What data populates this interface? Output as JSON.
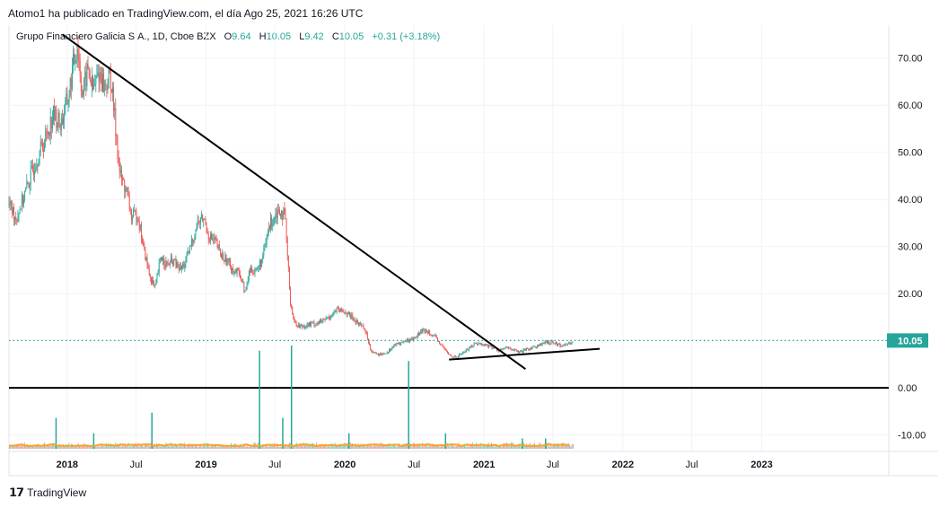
{
  "header": {
    "publish_text": "Atomo1 ha publicado en TradingView.com, el día Ago 25, 2021 16:26 UTC"
  },
  "legend": {
    "symbol": "Grupo Financiero Galicia S.A., 1D, Cboe BZX",
    "open_label": "O",
    "open": "9.64",
    "high_label": "H",
    "high": "10.05",
    "low_label": "L",
    "low": "9.42",
    "close_label": "C",
    "close": "10.05",
    "change": "+0.31 (+3.18%)"
  },
  "footer": {
    "logo_icon": "tradingview-logo-icon",
    "brand": "TradingView"
  },
  "colors": {
    "up": "#26a69a",
    "down": "#ef5350",
    "price_line": "#26a69a",
    "volume_ma": "#f5a623",
    "trendline": "#000000"
  },
  "chart_data": {
    "type": "candlestick",
    "price_axis": {
      "ticks": [
        -10,
        0,
        10,
        20,
        30,
        40,
        50,
        60,
        70
      ],
      "tick_labels": [
        "-10.00",
        "0.00",
        "10.00",
        "20.00",
        "30.00",
        "40.00",
        "50.00",
        "60.00",
        "70.00"
      ],
      "range": [
        -13.5,
        77
      ]
    },
    "time_axis": {
      "range": [
        "2017-08-01",
        "2023-12-01"
      ],
      "ticks": [
        {
          "date": "2018-01-01",
          "label": "2018",
          "bold": true
        },
        {
          "date": "2018-07-01",
          "label": "Jul",
          "bold": false
        },
        {
          "date": "2019-01-01",
          "label": "2019",
          "bold": true
        },
        {
          "date": "2019-07-01",
          "label": "Jul",
          "bold": false
        },
        {
          "date": "2020-01-01",
          "label": "2020",
          "bold": true
        },
        {
          "date": "2020-07-01",
          "label": "Jul",
          "bold": false
        },
        {
          "date": "2021-01-01",
          "label": "2021",
          "bold": true
        },
        {
          "date": "2021-07-01",
          "label": "Jul",
          "bold": false
        },
        {
          "date": "2022-01-01",
          "label": "2022",
          "bold": true
        },
        {
          "date": "2022-07-01",
          "label": "Jul",
          "bold": false
        },
        {
          "date": "2023-01-01",
          "label": "2023",
          "bold": true
        }
      ]
    },
    "last_price": {
      "value": 10.05,
      "label": "10.05"
    },
    "price_path": [
      [
        "2017-08-01",
        39
      ],
      [
        "2017-08-20",
        36
      ],
      [
        "2017-09-15",
        42
      ],
      [
        "2017-10-10",
        48
      ],
      [
        "2017-11-05",
        53
      ],
      [
        "2017-11-25",
        58
      ],
      [
        "2017-12-15",
        56
      ],
      [
        "2018-01-05",
        62
      ],
      [
        "2018-01-20",
        70
      ],
      [
        "2018-01-28",
        73
      ],
      [
        "2018-02-10",
        62
      ],
      [
        "2018-02-25",
        68
      ],
      [
        "2018-03-10",
        63
      ],
      [
        "2018-03-25",
        67
      ],
      [
        "2018-04-10",
        64
      ],
      [
        "2018-04-25",
        66
      ],
      [
        "2018-05-05",
        58
      ],
      [
        "2018-05-20",
        45
      ],
      [
        "2018-06-05",
        42
      ],
      [
        "2018-06-20",
        36
      ],
      [
        "2018-07-05",
        37
      ],
      [
        "2018-07-20",
        30
      ],
      [
        "2018-08-05",
        24
      ],
      [
        "2018-08-20",
        21
      ],
      [
        "2018-09-05",
        28
      ],
      [
        "2018-09-20",
        26
      ],
      [
        "2018-10-05",
        27
      ],
      [
        "2018-10-25",
        25
      ],
      [
        "2018-11-10",
        27
      ],
      [
        "2018-11-25",
        31
      ],
      [
        "2018-12-10",
        35
      ],
      [
        "2018-12-25",
        36
      ],
      [
        "2019-01-10",
        32
      ],
      [
        "2019-01-25",
        31
      ],
      [
        "2019-02-10",
        28
      ],
      [
        "2019-02-25",
        27
      ],
      [
        "2019-03-15",
        25
      ],
      [
        "2019-04-01",
        24
      ],
      [
        "2019-04-15",
        20
      ],
      [
        "2019-04-25",
        25
      ],
      [
        "2019-05-15",
        25
      ],
      [
        "2019-06-01",
        28
      ],
      [
        "2019-06-15",
        34
      ],
      [
        "2019-07-01",
        37
      ],
      [
        "2019-07-15",
        38
      ],
      [
        "2019-07-28",
        36
      ],
      [
        "2019-08-10",
        19
      ],
      [
        "2019-08-20",
        14
      ],
      [
        "2019-09-05",
        13
      ],
      [
        "2019-10-01",
        13.5
      ],
      [
        "2019-11-01",
        14
      ],
      [
        "2019-11-20",
        15
      ],
      [
        "2019-12-10",
        16.5
      ],
      [
        "2020-01-05",
        16
      ],
      [
        "2020-02-01",
        14
      ],
      [
        "2020-02-20",
        13
      ],
      [
        "2020-03-10",
        8
      ],
      [
        "2020-03-25",
        7
      ],
      [
        "2020-04-20",
        7.5
      ],
      [
        "2020-05-10",
        9
      ],
      [
        "2020-06-10",
        10
      ],
      [
        "2020-07-01",
        10.5
      ],
      [
        "2020-07-20",
        12
      ],
      [
        "2020-08-10",
        12
      ],
      [
        "2020-09-01",
        10
      ],
      [
        "2020-10-01",
        7
      ],
      [
        "2020-10-20",
        6.5
      ],
      [
        "2020-11-15",
        8
      ],
      [
        "2020-12-10",
        9.5
      ],
      [
        "2021-01-10",
        9
      ],
      [
        "2021-02-10",
        8
      ],
      [
        "2021-03-05",
        8.5
      ],
      [
        "2021-04-05",
        7.5
      ],
      [
        "2021-05-05",
        8.5
      ],
      [
        "2021-06-10",
        9.5
      ],
      [
        "2021-07-01",
        9.8
      ],
      [
        "2021-07-20",
        9
      ],
      [
        "2021-08-10",
        9.3
      ],
      [
        "2021-08-25",
        10.05
      ]
    ],
    "volume_axis_note": "volume histogram in lower pane",
    "volume_spikes": [
      [
        "2017-12-01",
        0.3
      ],
      [
        "2018-03-10",
        0.15
      ],
      [
        "2018-08-10",
        0.35
      ],
      [
        "2019-05-20",
        0.95
      ],
      [
        "2019-07-20",
        0.3
      ],
      [
        "2019-08-12",
        1.0
      ],
      [
        "2020-01-10",
        0.15
      ],
      [
        "2020-06-15",
        0.85
      ],
      [
        "2020-09-20",
        0.15
      ],
      [
        "2021-04-10",
        0.1
      ],
      [
        "2021-06-10",
        0.1
      ]
    ],
    "trendlines": [
      {
        "name": "downtrend",
        "from": [
          "2017-12-20",
          75
        ],
        "to": [
          "2021-04-20",
          4
        ]
      },
      {
        "name": "support",
        "from": [
          "2020-10-01",
          6
        ],
        "to": [
          "2021-11-01",
          8.3
        ]
      }
    ],
    "horizontal_lines": [
      {
        "value": 0,
        "color": "#000000"
      }
    ]
  }
}
